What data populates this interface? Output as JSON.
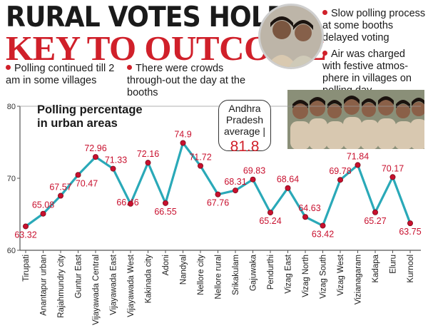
{
  "header": {
    "line1": "RURAL VOTES HOLD",
    "line2": "KEY TO OUTCOME"
  },
  "bullets": {
    "left1": "Polling continued till 2 am in some villages",
    "left2": "There were crowds through-out the day at the booths",
    "right1": "Slow polling process at some booths delayed voting",
    "right2": "Air was charged with festive atmos-phere in villages on polling day"
  },
  "average": {
    "label": "Andhra Pradesh average |",
    "value": "81.8"
  },
  "colors": {
    "accent": "#d0202a",
    "line": "#2aa9b8",
    "point": "#c8102e"
  },
  "chart_data": {
    "type": "line",
    "title": "Polling percentage in urban areas",
    "xlabel": "",
    "ylabel": "",
    "ylim": [
      60,
      80
    ],
    "yticks": [
      60,
      70,
      80
    ],
    "categories": [
      "Tirupati",
      "Anantapur urban",
      "Rajahmundry city",
      "Guntur East",
      "Vijayawada Central",
      "Vijayawada East",
      "Vijayawada West",
      "Kakinada city",
      "Adoni",
      "Nandyal",
      "Nellore city",
      "Nellore rural",
      "Srikakulam",
      "Gajuwaka",
      "Pendurthi",
      "Vizag East",
      "Vizag North",
      "Vizag South",
      "Vizag West",
      "Vizianagaram",
      "Kadapa",
      "Eluru",
      "Kurnool"
    ],
    "values": [
      63.32,
      65.08,
      67.57,
      70.47,
      72.96,
      71.33,
      66.46,
      72.16,
      66.55,
      74.9,
      71.72,
      67.76,
      68.31,
      69.83,
      65.24,
      68.64,
      64.63,
      63.42,
      69.78,
      71.84,
      65.27,
      70.17,
      63.75
    ],
    "labels": [
      "63.32",
      "65.08",
      "67.57",
      "70.47",
      "72.96",
      "71.33",
      "66.46",
      "72.16",
      "66.55",
      "74.9",
      "71.72",
      "67.76",
      "68.31",
      "69.83",
      "65.24",
      "68.64",
      "64.63",
      "63.42",
      "69.78",
      "71.84",
      "65.27",
      "70.17",
      "63.75"
    ],
    "grid": false
  }
}
